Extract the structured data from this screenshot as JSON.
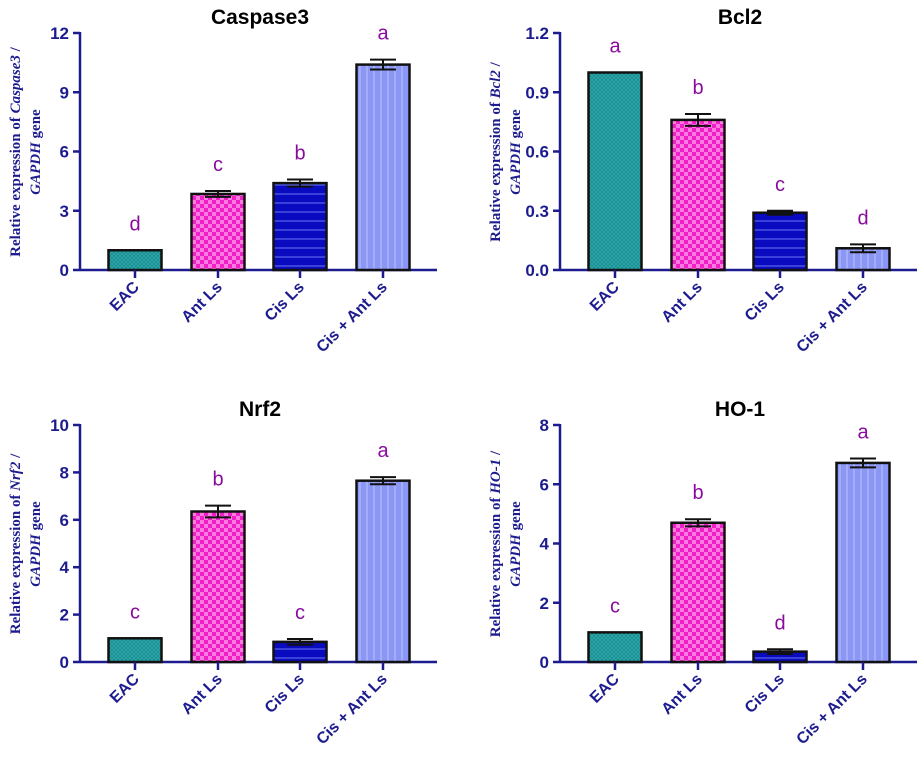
{
  "colors": {
    "axis": "#1c1c8f",
    "letters": "#8a0aa0",
    "title": "#000000",
    "bars": [
      "#0e8f93",
      "#f01fc8",
      "#0a0ac0",
      "#8c96f5"
    ]
  },
  "chart_data": [
    {
      "type": "bar",
      "title": "Caspase3",
      "ylabel_pre": "Relative expression of ",
      "ylabel_gene": "Caspase3",
      "ylabel_post": " /",
      "ylabel_ref": "GAPDH",
      "ylabel_tail": " gene",
      "categories": [
        "EAC",
        "Ant Ls",
        "Cis Ls",
        "Cis + Ant Ls"
      ],
      "values": [
        1.0,
        3.85,
        4.4,
        10.4
      ],
      "errors": [
        0,
        0.15,
        0.18,
        0.25
      ],
      "letters": [
        "d",
        "c",
        "b",
        "a"
      ],
      "ylim": [
        0,
        12
      ],
      "yticks": [
        "0",
        "3",
        "6",
        "9",
        "12"
      ]
    },
    {
      "type": "bar",
      "title": "Bcl2",
      "ylabel_pre": "Relative expression of ",
      "ylabel_gene": "Bcl2",
      "ylabel_post": " /",
      "ylabel_ref": "GAPDH",
      "ylabel_tail": " gene",
      "categories": [
        "EAC",
        "Ant Ls",
        "Cis Ls",
        "Cis + Ant Ls"
      ],
      "values": [
        1.0,
        0.76,
        0.29,
        0.11
      ],
      "errors": [
        0,
        0.03,
        0.01,
        0.02
      ],
      "letters": [
        "a",
        "b",
        "c",
        "d"
      ],
      "ylim": [
        0,
        1.2
      ],
      "yticks": [
        "0.0",
        "0.3",
        "0.6",
        "0.9",
        "1.2"
      ]
    },
    {
      "type": "bar",
      "title": "Nrf2",
      "ylabel_pre": "Relative expression of ",
      "ylabel_gene": "Nrf2",
      "ylabel_post": " /",
      "ylabel_ref": "GAPDH",
      "ylabel_tail": " gene",
      "categories": [
        "EAC",
        "Ant Ls",
        "Cis Ls",
        "Cis + Ant Ls"
      ],
      "values": [
        1.0,
        6.35,
        0.85,
        7.65
      ],
      "errors": [
        0,
        0.25,
        0.12,
        0.15
      ],
      "letters": [
        "c",
        "b",
        "c",
        "a"
      ],
      "ylim": [
        0,
        10
      ],
      "yticks": [
        "0",
        "2",
        "4",
        "6",
        "8",
        "10"
      ]
    },
    {
      "type": "bar",
      "title": "HO-1",
      "ylabel_pre": "Relative expression of ",
      "ylabel_gene": "HO-1",
      "ylabel_post": " /",
      "ylabel_ref": "GAPDH",
      "ylabel_tail": " gene",
      "categories": [
        "EAC",
        "Ant Ls",
        "Cis Ls",
        "Cis + Ant Ls"
      ],
      "values": [
        1.0,
        4.7,
        0.35,
        6.72
      ],
      "errors": [
        0,
        0.12,
        0.08,
        0.15
      ],
      "letters": [
        "c",
        "b",
        "d",
        "a"
      ],
      "ylim": [
        0,
        8
      ],
      "yticks": [
        "0",
        "2",
        "4",
        "6",
        "8"
      ]
    }
  ]
}
